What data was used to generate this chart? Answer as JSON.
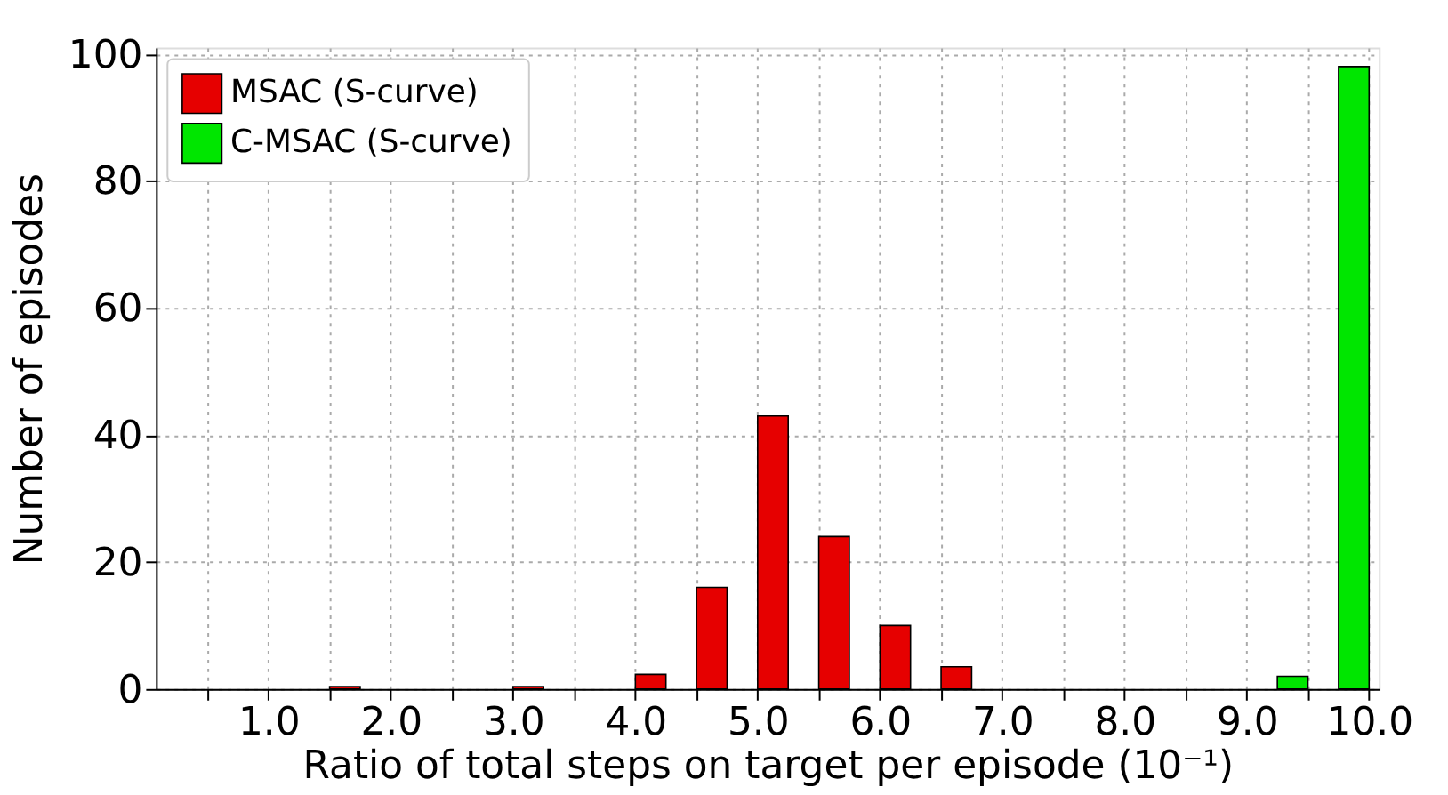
{
  "chart_data": {
    "type": "histogram",
    "xlabel": "Ratio of total steps on target per episode (10⁻¹)",
    "ylabel": "Number of episodes",
    "bins": [
      0.5,
      1.0,
      1.5,
      2.0,
      2.5,
      3.0,
      3.5,
      4.0,
      4.5,
      5.0,
      5.5,
      6.0,
      6.5,
      7.0,
      7.5,
      8.0,
      8.5,
      9.0,
      9.5,
      10.0
    ],
    "series": [
      {
        "name": "MSAC (S-curve)",
        "color": "#e60000",
        "values": [
          0,
          0,
          0.4,
          0,
          0,
          0.4,
          0,
          2.3,
          16,
          43,
          24,
          10,
          3.5,
          0,
          0,
          0,
          0,
          0,
          0
        ]
      },
      {
        "name": "C-MSAC (S-curve)",
        "color": "#00e600",
        "values": [
          0,
          0,
          0,
          0,
          0,
          0,
          0,
          0,
          0,
          0,
          0,
          0,
          0,
          0,
          0,
          0,
          0,
          2,
          98
        ]
      }
    ],
    "xlim": [
      0.08,
      10.08
    ],
    "ylim": [
      0,
      101
    ],
    "xticks": [
      {
        "value": 0.5,
        "label": null
      },
      {
        "value": 1.0,
        "label": "1.0"
      },
      {
        "value": 1.5,
        "label": null
      },
      {
        "value": 2.0,
        "label": "2.0"
      },
      {
        "value": 2.5,
        "label": null
      },
      {
        "value": 3.0,
        "label": "3.0"
      },
      {
        "value": 3.5,
        "label": null
      },
      {
        "value": 4.0,
        "label": "4.0"
      },
      {
        "value": 4.5,
        "label": null
      },
      {
        "value": 5.0,
        "label": "5.0"
      },
      {
        "value": 5.5,
        "label": null
      },
      {
        "value": 6.0,
        "label": "6.0"
      },
      {
        "value": 6.5,
        "label": null
      },
      {
        "value": 7.0,
        "label": "7.0"
      },
      {
        "value": 7.5,
        "label": null
      },
      {
        "value": 8.0,
        "label": "8.0"
      },
      {
        "value": 8.5,
        "label": null
      },
      {
        "value": 9.0,
        "label": "9.0"
      },
      {
        "value": 9.5,
        "label": null
      },
      {
        "value": 10.0,
        "label": "10.0"
      }
    ],
    "yticks": [
      0,
      20,
      40,
      60,
      80,
      100
    ],
    "grid": true,
    "legend": "top left"
  }
}
